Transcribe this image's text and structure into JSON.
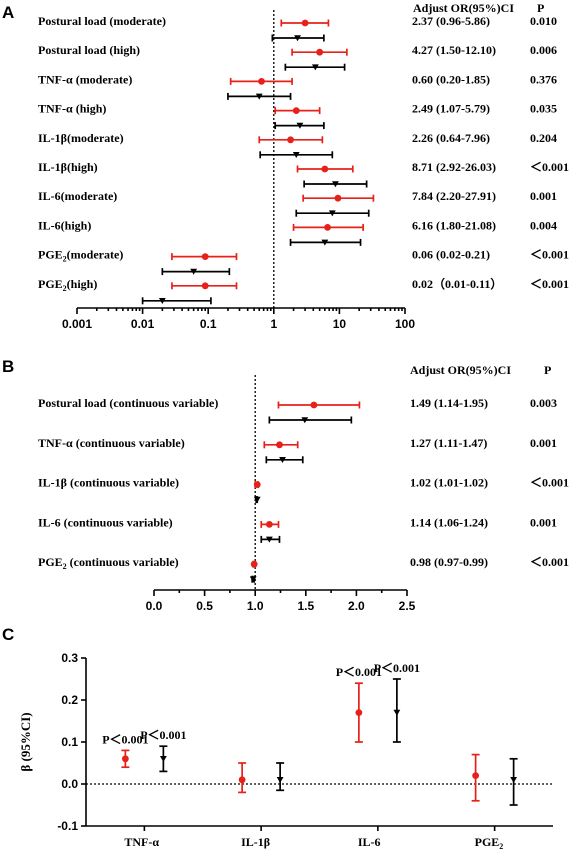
{
  "chart_data": [
    {
      "panel": "A",
      "type": "forest",
      "x_scale": "log",
      "xlim": [
        0.001,
        100
      ],
      "xticks": [
        "0.001",
        "0.01",
        "0.1",
        "1",
        "10",
        "100"
      ],
      "reference_line": 1,
      "header": {
        "or_label": "Adjust OR(95%)CI",
        "p_label": "P"
      },
      "rows": [
        {
          "label": "Postural load (moderate)",
          "text": "2.37 (0.96-5.86)",
          "p": "0.010"
        },
        {
          "label": "Postural load (high)",
          "text": "4.27 (1.50-12.10)",
          "p": "0.006"
        },
        {
          "label": "TNF-α (moderate)",
          "text": "0.60 (0.20-1.85)",
          "p": "0.376"
        },
        {
          "label": "TNF-α (high)",
          "text": "2.49 (1.07-5.79)",
          "p": "0.035"
        },
        {
          "label": "IL-1β(moderate)",
          "text": "2.26 (0.64-7.96)",
          "p": "0.204"
        },
        {
          "label": "IL-1β(high)",
          "text": "8.71 (2.92-26.03)",
          "p": "＜0.001"
        },
        {
          "label": "IL-6(moderate)",
          "text": "7.84 (2.20-27.91)",
          "p": "0.001"
        },
        {
          "label": "IL-6(high)",
          "text": "6.16 (1.80-21.08)",
          "p": "0.004"
        },
        {
          "label": "PGE2(moderate)",
          "text": "0.06 (0.02-0.21)",
          "p": "＜0.001"
        },
        {
          "label": "PGE2(high)",
          "text": "0.02（0.01-0.11）",
          "p": "＜0.001"
        }
      ],
      "series": [
        {
          "color": "#e8201a",
          "marker": "circle",
          "estimates": [
            {
              "est": 3.0,
              "lo": 1.3,
              "hi": 6.8
            },
            {
              "est": 5.0,
              "lo": 1.9,
              "hi": 13.0
            },
            {
              "est": 0.65,
              "lo": 0.22,
              "hi": 1.9
            },
            {
              "est": 2.2,
              "lo": 1.05,
              "hi": 5.0
            },
            {
              "est": 1.8,
              "lo": 0.6,
              "hi": 5.5
            },
            {
              "est": 6.0,
              "lo": 2.3,
              "hi": 16.0
            },
            {
              "est": 9.5,
              "lo": 2.8,
              "hi": 33.0
            },
            {
              "est": 6.6,
              "lo": 2.0,
              "hi": 23.0
            },
            {
              "est": 0.09,
              "lo": 0.028,
              "hi": 0.27
            },
            {
              "est": 0.09,
              "lo": 0.028,
              "hi": 0.27
            }
          ]
        },
        {
          "color": "#000000",
          "marker": "triangle-down",
          "estimates": [
            {
              "est": 2.3,
              "lo": 0.95,
              "hi": 5.8
            },
            {
              "est": 4.3,
              "lo": 1.5,
              "hi": 12.0
            },
            {
              "est": 0.6,
              "lo": 0.2,
              "hi": 1.8
            },
            {
              "est": 2.5,
              "lo": 1.05,
              "hi": 5.8
            },
            {
              "est": 2.2,
              "lo": 0.62,
              "hi": 7.8
            },
            {
              "est": 8.7,
              "lo": 2.9,
              "hi": 26.0
            },
            {
              "est": 7.8,
              "lo": 2.2,
              "hi": 28.0
            },
            {
              "est": 6.0,
              "lo": 1.8,
              "hi": 21.0
            },
            {
              "est": 0.06,
              "lo": 0.02,
              "hi": 0.21
            },
            {
              "est": 0.02,
              "lo": 0.01,
              "hi": 0.11
            }
          ]
        }
      ]
    },
    {
      "panel": "B",
      "type": "forest",
      "x_scale": "linear",
      "xlim": [
        0.0,
        2.5
      ],
      "xticks": [
        "0.0",
        "0.5",
        "1.0",
        "1.5",
        "2.0",
        "2.5"
      ],
      "reference_line": 1,
      "header": {
        "or_label": "Adjust OR(95%)CI",
        "p_label": "P"
      },
      "rows": [
        {
          "label": "Postural load (continuous variable)",
          "text": "1.49 (1.14-1.95)",
          "p": "0.003"
        },
        {
          "label": "TNF-α (continuous variable)",
          "text": "1.27 (1.11-1.47)",
          "p": "0.001"
        },
        {
          "label": "IL-1β (continuous variable)",
          "text": "1.02 (1.01-1.02)",
          "p": "＜0.001"
        },
        {
          "label": "IL-6 (continuous variable)",
          "text": "1.14 (1.06-1.24)",
          "p": "0.001"
        },
        {
          "label": "PGE2 (continuous variable)",
          "text": "0.98 (0.97-0.99)",
          "p": "＜0.001"
        }
      ],
      "series": [
        {
          "color": "#e8201a",
          "marker": "circle",
          "estimates": [
            {
              "est": 1.58,
              "lo": 1.23,
              "hi": 2.03
            },
            {
              "est": 1.24,
              "lo": 1.09,
              "hi": 1.42
            },
            {
              "est": 1.02,
              "lo": 1.0,
              "hi": 1.03
            },
            {
              "est": 1.14,
              "lo": 1.06,
              "hi": 1.23
            },
            {
              "est": 0.99,
              "lo": 0.98,
              "hi": 1.0
            }
          ]
        },
        {
          "color": "#000000",
          "marker": "triangle-down",
          "estimates": [
            {
              "est": 1.49,
              "lo": 1.14,
              "hi": 1.95
            },
            {
              "est": 1.27,
              "lo": 1.11,
              "hi": 1.47
            },
            {
              "est": 1.02,
              "lo": 1.01,
              "hi": 1.02
            },
            {
              "est": 1.14,
              "lo": 1.06,
              "hi": 1.24
            },
            {
              "est": 0.98,
              "lo": 0.97,
              "hi": 0.99
            }
          ]
        }
      ]
    },
    {
      "panel": "C",
      "type": "errorbar",
      "ylabel": "β (95%CI)",
      "ylim": [
        -0.1,
        0.3
      ],
      "yticks": [
        "-0.1",
        "0.0",
        "0.1",
        "0.2",
        "0.3"
      ],
      "reference_line": 0,
      "categories": [
        "TNF-α",
        "IL-1β",
        "IL-6",
        "PGE2"
      ],
      "series": [
        {
          "color": "#e8201a",
          "marker": "circle",
          "points": [
            {
              "est": 0.06,
              "lo": 0.04,
              "hi": 0.08,
              "p": "P＜0.001"
            },
            {
              "est": 0.01,
              "lo": -0.02,
              "hi": 0.05,
              "p": ""
            },
            {
              "est": 0.17,
              "lo": 0.1,
              "hi": 0.24,
              "p": "P＜0.001"
            },
            {
              "est": 0.02,
              "lo": -0.04,
              "hi": 0.07,
              "p": ""
            }
          ]
        },
        {
          "color": "#000000",
          "marker": "triangle-down",
          "points": [
            {
              "est": 0.06,
              "lo": 0.03,
              "hi": 0.09,
              "p": "P＜0.001"
            },
            {
              "est": 0.01,
              "lo": -0.015,
              "hi": 0.05,
              "p": ""
            },
            {
              "est": 0.17,
              "lo": 0.1,
              "hi": 0.25,
              "p": "P＜0.001"
            },
            {
              "est": 0.01,
              "lo": -0.05,
              "hi": 0.06,
              "p": ""
            }
          ]
        }
      ]
    }
  ]
}
